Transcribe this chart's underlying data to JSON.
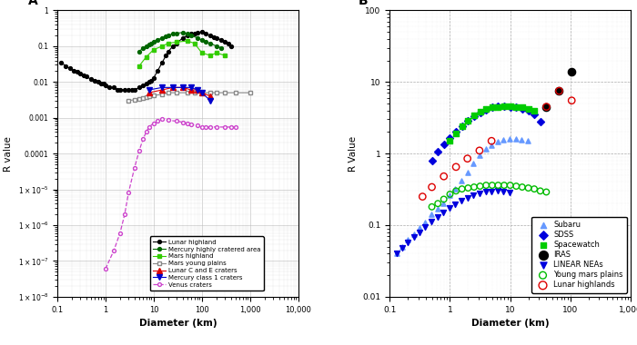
{
  "panel_A": {
    "lunar_highland": {
      "x": [
        0.12,
        0.15,
        0.18,
        0.22,
        0.26,
        0.3,
        0.35,
        0.4,
        0.5,
        0.6,
        0.7,
        0.8,
        0.9,
        1.0,
        1.2,
        1.5,
        1.8,
        2.0,
        2.5,
        3.0,
        3.5,
        4.0,
        5.0,
        6.0,
        7.0,
        8.0,
        9.0,
        10,
        12,
        15,
        18,
        20,
        25,
        30,
        40,
        50,
        60,
        70,
        80,
        100,
        120,
        150,
        180,
        200,
        250,
        300,
        350,
        400
      ],
      "y": [
        0.035,
        0.028,
        0.024,
        0.021,
        0.019,
        0.017,
        0.015,
        0.014,
        0.012,
        0.011,
        0.01,
        0.009,
        0.009,
        0.008,
        0.007,
        0.007,
        0.006,
        0.006,
        0.006,
        0.006,
        0.006,
        0.006,
        0.007,
        0.008,
        0.009,
        0.01,
        0.011,
        0.013,
        0.02,
        0.035,
        0.055,
        0.07,
        0.1,
        0.12,
        0.17,
        0.2,
        0.22,
        0.23,
        0.24,
        0.25,
        0.22,
        0.2,
        0.18,
        0.17,
        0.15,
        0.13,
        0.12,
        0.1
      ],
      "color": "#000000",
      "marker": "o",
      "linestyle": "-"
    },
    "mercury_hca": {
      "x": [
        5,
        6,
        7,
        8,
        9,
        10,
        12,
        15,
        18,
        20,
        25,
        30,
        40,
        50,
        60,
        80,
        100,
        120,
        150,
        200,
        250
      ],
      "y": [
        0.07,
        0.09,
        0.1,
        0.11,
        0.12,
        0.13,
        0.15,
        0.17,
        0.19,
        0.2,
        0.22,
        0.23,
        0.24,
        0.22,
        0.2,
        0.17,
        0.15,
        0.13,
        0.12,
        0.1,
        0.09
      ],
      "color": "#006600",
      "marker": "o",
      "linestyle": "-"
    },
    "mars_highland": {
      "x": [
        5,
        7,
        10,
        15,
        20,
        30,
        50,
        70,
        100,
        150,
        200,
        300
      ],
      "y": [
        0.028,
        0.05,
        0.08,
        0.1,
        0.12,
        0.13,
        0.14,
        0.12,
        0.065,
        0.055,
        0.065,
        0.055
      ],
      "color": "#33cc00",
      "marker": "s",
      "linestyle": "-"
    },
    "mars_young_plains": {
      "x": [
        3,
        4,
        5,
        6,
        7,
        8,
        10,
        15,
        20,
        30,
        50,
        70,
        100,
        150,
        200,
        300,
        500,
        1000
      ],
      "y": [
        0.003,
        0.0032,
        0.0034,
        0.0036,
        0.0038,
        0.004,
        0.0042,
        0.0045,
        0.005,
        0.005,
        0.005,
        0.005,
        0.005,
        0.005,
        0.005,
        0.005,
        0.005,
        0.005
      ],
      "color": "#888888",
      "marker": "s",
      "linestyle": "-",
      "markerfacecolor": "white"
    },
    "lunar_CE_craters": {
      "x": [
        8,
        15,
        25,
        40,
        60,
        80,
        100,
        150
      ],
      "y": [
        0.005,
        0.006,
        0.007,
        0.007,
        0.006,
        0.006,
        0.005,
        0.004
      ],
      "color": "#dd0000",
      "marker": "^",
      "linestyle": "-"
    },
    "mercury_class1": {
      "x": [
        8,
        15,
        25,
        40,
        60,
        80,
        100,
        150
      ],
      "y": [
        0.006,
        0.007,
        0.007,
        0.007,
        0.007,
        0.006,
        0.005,
        0.003
      ],
      "color": "#0000cc",
      "marker": "v",
      "linestyle": "-"
    },
    "venus_craters": {
      "x": [
        1.0,
        1.5,
        2.0,
        2.5,
        3.0,
        4.0,
        5.0,
        6.0,
        7.0,
        8.0,
        10,
        12,
        15,
        20,
        30,
        40,
        50,
        60,
        80,
        100,
        120,
        150,
        200,
        300,
        400,
        500
      ],
      "y": [
        6e-08,
        2e-07,
        6e-07,
        2e-06,
        8e-06,
        4e-05,
        0.00012,
        0.00025,
        0.0004,
        0.00055,
        0.0007,
        0.0008,
        0.0009,
        0.00085,
        0.0008,
        0.00075,
        0.0007,
        0.00065,
        0.0006,
        0.00055,
        0.00055,
        0.00055,
        0.00055,
        0.00055,
        0.00055,
        0.00055
      ],
      "color": "#cc44cc",
      "marker": "o",
      "linestyle": "--",
      "markerfacecolor": "white"
    }
  },
  "panel_B": {
    "subaru": {
      "x": [
        0.13,
        0.16,
        0.2,
        0.25,
        0.31,
        0.39,
        0.49,
        0.62,
        0.78,
        0.98,
        1.23,
        1.55,
        1.95,
        2.46,
        3.09,
        3.89,
        4.9,
        6.17,
        7.76,
        9.77,
        12.3,
        15.5,
        19.5
      ],
      "y": [
        0.04,
        0.05,
        0.062,
        0.075,
        0.092,
        0.11,
        0.14,
        0.17,
        0.2,
        0.26,
        0.32,
        0.42,
        0.55,
        0.72,
        0.95,
        1.15,
        1.3,
        1.45,
        1.55,
        1.6,
        1.6,
        1.55,
        1.5
      ],
      "color": "#6699ff",
      "marker": "^"
    },
    "sdss": {
      "x": [
        0.5,
        0.63,
        0.79,
        1.0,
        1.26,
        1.58,
        2.0,
        2.51,
        3.16,
        3.98,
        5.01,
        6.31,
        7.94,
        10.0,
        12.6,
        15.8,
        20.0,
        25.1,
        31.6
      ],
      "y": [
        0.8,
        1.05,
        1.35,
        1.65,
        2.0,
        2.4,
        2.85,
        3.3,
        3.7,
        4.1,
        4.4,
        4.55,
        4.55,
        4.5,
        4.4,
        4.2,
        3.9,
        3.5,
        2.8
      ],
      "color": "#0000dd",
      "marker": "D"
    },
    "spacewatch": {
      "x": [
        1.0,
        1.26,
        1.58,
        2.0,
        2.51,
        3.16,
        3.98,
        5.01,
        6.31,
        7.94,
        10.0,
        12.6,
        15.8,
        20.0,
        25.1
      ],
      "y": [
        1.5,
        1.9,
        2.4,
        2.9,
        3.4,
        3.85,
        4.2,
        4.4,
        4.5,
        4.55,
        4.55,
        4.5,
        4.4,
        4.2,
        3.9
      ],
      "color": "#00cc00",
      "marker": "s"
    },
    "iras": {
      "x": [
        40,
        65,
        105
      ],
      "y": [
        4.5,
        7.5,
        14.0
      ],
      "color": "#000000",
      "marker": "o"
    },
    "linear_neas": {
      "x": [
        0.13,
        0.16,
        0.2,
        0.25,
        0.31,
        0.39,
        0.49,
        0.62,
        0.78,
        0.98,
        1.23,
        1.55,
        1.95,
        2.46,
        3.09,
        3.89,
        4.9,
        6.17,
        7.76,
        9.77
      ],
      "y": [
        0.04,
        0.048,
        0.057,
        0.068,
        0.08,
        0.095,
        0.112,
        0.13,
        0.15,
        0.172,
        0.195,
        0.218,
        0.24,
        0.26,
        0.278,
        0.29,
        0.298,
        0.3,
        0.295,
        0.285
      ],
      "color": "#0000dd",
      "marker": "v"
    },
    "young_mars_plains": {
      "x": [
        0.5,
        0.63,
        0.79,
        1.0,
        1.26,
        1.58,
        2.0,
        2.51,
        3.16,
        3.98,
        5.01,
        6.31,
        7.94,
        10.0,
        12.6,
        15.8,
        20.0,
        25.1,
        31.6,
        39.8
      ],
      "y": [
        0.18,
        0.2,
        0.23,
        0.27,
        0.3,
        0.32,
        0.33,
        0.34,
        0.35,
        0.36,
        0.36,
        0.36,
        0.36,
        0.36,
        0.35,
        0.34,
        0.33,
        0.32,
        0.3,
        0.29
      ],
      "color": "#00bb00",
      "marker": "o",
      "markerfacecolor": "none"
    },
    "lunar_highlands": {
      "x": [
        0.35,
        0.5,
        0.79,
        1.26,
        1.95,
        3.09,
        4.9,
        40,
        65,
        105
      ],
      "y": [
        0.25,
        0.34,
        0.48,
        0.65,
        0.85,
        1.1,
        1.5,
        4.5,
        7.5,
        5.5
      ],
      "color": "#dd0000",
      "marker": "o",
      "markerfacecolor": "none"
    }
  },
  "panel_A_xlim": [
    0.1,
    10000
  ],
  "panel_A_ylim": [
    1e-08,
    1.0
  ],
  "panel_B_xlim": [
    0.1,
    1000
  ],
  "panel_B_ylim": [
    0.01,
    100
  ],
  "xlabel": "Diameter (km)",
  "ylabel_A": "R value",
  "ylabel_B": "R Value"
}
